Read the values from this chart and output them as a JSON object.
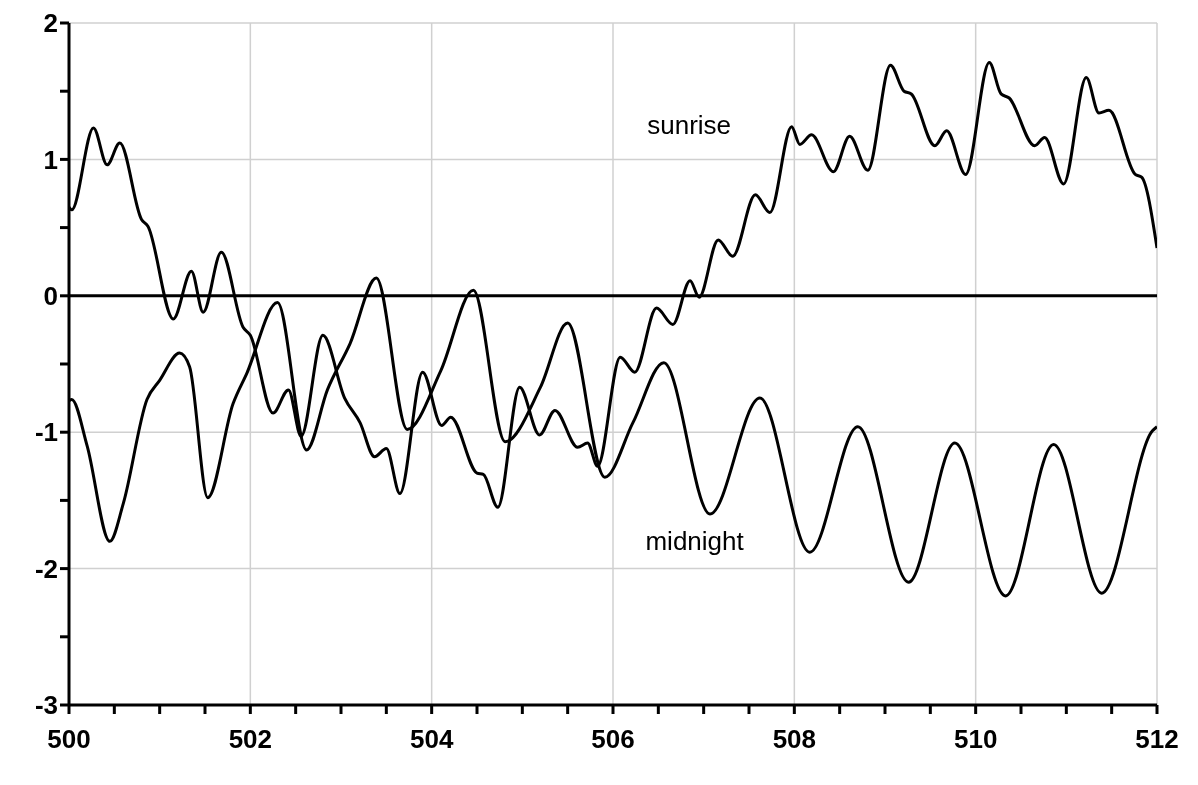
{
  "chart_data": {
    "type": "line",
    "xlim": [
      500,
      512
    ],
    "ylim": [
      -3,
      2
    ],
    "xticks": [
      500,
      {
        "value": 500.5,
        "label": null
      },
      {
        "value": 501,
        "label": null
      },
      {
        "value": 501.5,
        "label": null
      },
      502,
      {
        "value": 502.5,
        "label": null
      },
      {
        "value": 503,
        "label": null
      },
      {
        "value": 503.5,
        "label": null
      },
      504,
      {
        "value": 504.5,
        "label": null
      },
      {
        "value": 505,
        "label": null
      },
      {
        "value": 505.5,
        "label": null
      },
      506,
      {
        "value": 506.5,
        "label": null
      },
      {
        "value": 507,
        "label": null
      },
      {
        "value": 507.5,
        "label": null
      },
      508,
      {
        "value": 508.5,
        "label": null
      },
      {
        "value": 509,
        "label": null
      },
      {
        "value": 509.5,
        "label": null
      },
      510,
      {
        "value": 510.5,
        "label": null
      },
      {
        "value": 511,
        "label": null
      },
      {
        "value": 511.5,
        "label": null
      },
      512
    ],
    "yticks": [
      -3,
      {
        "value": -2.5,
        "label": null
      },
      -2,
      {
        "value": -1.5,
        "label": null
      },
      -1,
      {
        "value": -0.5,
        "label": null
      },
      0,
      {
        "value": 0.5,
        "label": null
      },
      1,
      {
        "value": 1.5,
        "label": null
      },
      2
    ],
    "grid": true,
    "marker": "none",
    "line_style": "solid",
    "ref_lines": [
      {
        "axis": "y",
        "value": 0,
        "color": "#000000"
      }
    ],
    "series": [
      {
        "name": "sunrise",
        "color": "#000000",
        "x": [
          500,
          500.03,
          500.27,
          500.42,
          500.56,
          500.8,
          500.87,
          501.15,
          501.35,
          501.48,
          501.68,
          501.92,
          502,
          502.25,
          502.42,
          502.56,
          502.8,
          503.04,
          503.21,
          503.37,
          503.5,
          503.65,
          503.9,
          504.11,
          504.21,
          504.5,
          504.57,
          504.73,
          504.97,
          505.19,
          505.36,
          505.61,
          505.72,
          505.83,
          506.08,
          506.24,
          506.48,
          506.66,
          506.85,
          506.95,
          507.16,
          507.32,
          507.57,
          507.73,
          507.97,
          508.06,
          508.19,
          508.43,
          508.61,
          508.81,
          509.06,
          509.21,
          509.29,
          509.55,
          509.68,
          509.89,
          510.15,
          510.28,
          510.37,
          510.65,
          510.76,
          510.97,
          511.22,
          511.36,
          511.47,
          511.76,
          511.83,
          512
        ],
        "values": [
          0.65,
          0.63,
          1.23,
          0.96,
          1.12,
          0.56,
          0.51,
          -0.17,
          0.18,
          -0.12,
          0.32,
          -0.23,
          -0.29,
          -0.86,
          -0.69,
          -1.03,
          -0.29,
          -0.75,
          -0.93,
          -1.18,
          -1.12,
          -1.45,
          -0.56,
          -0.95,
          -0.89,
          -1.3,
          -1.31,
          -1.55,
          -0.67,
          -1.02,
          -0.84,
          -1.11,
          -1.08,
          -1.25,
          -0.45,
          -0.56,
          -0.09,
          -0.21,
          0.11,
          -0.01,
          0.41,
          0.29,
          0.74,
          0.61,
          1.24,
          1.11,
          1.18,
          0.91,
          1.17,
          0.92,
          1.69,
          1.5,
          1.48,
          1.1,
          1.21,
          0.89,
          1.71,
          1.48,
          1.45,
          1.1,
          1.16,
          0.82,
          1.6,
          1.34,
          1.36,
          0.89,
          0.87,
          0.35
        ]
      },
      {
        "name": "midnight",
        "color": "#000000",
        "x": [
          500,
          500.03,
          500.2,
          500.45,
          500.6,
          500.86,
          501,
          501.22,
          501.33,
          501.53,
          501.81,
          501.96,
          502.3,
          502.62,
          502.85,
          503.1,
          503.39,
          503.73,
          504.1,
          504.46,
          504.81,
          505.2,
          505.5,
          505.91,
          506.22,
          506.56,
          507.07,
          507.62,
          508.17,
          508.7,
          509.26,
          509.77,
          510.33,
          510.86,
          511.39,
          511.95,
          512
        ],
        "values": [
          -0.77,
          -0.76,
          -1.1,
          -1.8,
          -1.52,
          -0.76,
          -0.62,
          -0.42,
          -0.52,
          -1.48,
          -0.79,
          -0.57,
          -0.05,
          -1.13,
          -0.69,
          -0.35,
          0.13,
          -0.98,
          -0.55,
          0.04,
          -1.07,
          -0.67,
          -0.2,
          -1.33,
          -0.93,
          -0.49,
          -1.6,
          -0.75,
          -1.88,
          -0.96,
          -2.1,
          -1.08,
          -2.2,
          -1.09,
          -2.18,
          -0.99,
          -0.96
        ]
      }
    ]
  }
}
